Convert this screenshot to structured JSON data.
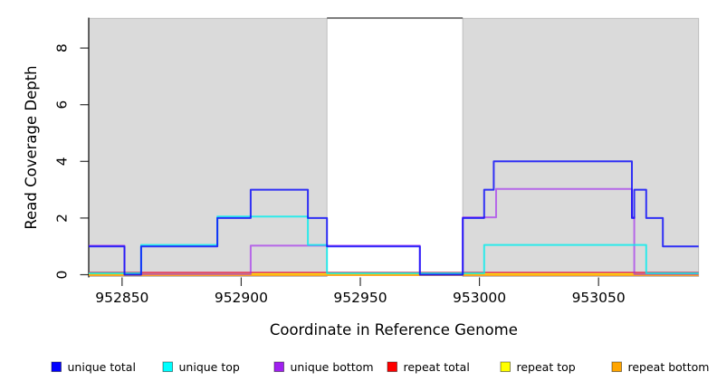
{
  "chart_data": {
    "type": "step-line",
    "title": "",
    "xlabel": "Coordinate in Reference Genome",
    "ylabel": "Read Coverage Depth",
    "xlim": [
      952836,
      953092
    ],
    "ylim": [
      0,
      9
    ],
    "x_ticks": [
      952850,
      952900,
      952950,
      953000,
      953050
    ],
    "y_ticks": [
      0,
      2,
      4,
      6,
      8
    ],
    "grid": false,
    "legend_position": "bottom",
    "background_regions": [
      {
        "name": "covered-region-left",
        "from": 952836,
        "to": 952936,
        "fill": "#dadada",
        "border": "#b9b9b9"
      },
      {
        "name": "covered-region-right",
        "from": 952993,
        "to": 953092,
        "fill": "#dadada",
        "border": "#b9b9b9"
      }
    ],
    "gap_region": {
      "from": 952936,
      "to": 952993,
      "fill": "#ffffff",
      "top_border_color": "#5f5f5f"
    },
    "series": [
      {
        "name": "unique total",
        "legend_fill": "#0000FF",
        "stroke": "rgba(10,10,250,0.82)",
        "dy": 0,
        "steps": [
          [
            952836,
            1
          ],
          [
            952851,
            0
          ],
          [
            952858,
            1
          ],
          [
            952890,
            2
          ],
          [
            952904,
            3
          ],
          [
            952928,
            2
          ],
          [
            952936,
            1
          ],
          [
            952975,
            0
          ],
          [
            952993,
            2
          ],
          [
            953002,
            3
          ],
          [
            953006,
            4
          ],
          [
            953064,
            2
          ],
          [
            953065,
            3
          ],
          [
            953070,
            2
          ],
          [
            953077,
            1
          ]
        ]
      },
      {
        "name": "unique top",
        "legend_fill": "#00FFFF",
        "stroke": "rgba(0,238,238,0.8)",
        "dy": -1.6,
        "steps": [
          [
            952836,
            0
          ],
          [
            952858,
            1
          ],
          [
            952890,
            2
          ],
          [
            952928,
            1
          ],
          [
            952936,
            0
          ],
          [
            953002,
            1
          ],
          [
            953070,
            0
          ]
        ]
      },
      {
        "name": "unique bottom",
        "legend_fill": "#A020F0",
        "stroke": "rgba(160,32,240,0.62)",
        "dy": -0.8,
        "steps": [
          [
            952836,
            1
          ],
          [
            952851,
            0
          ],
          [
            952904,
            1
          ],
          [
            952975,
            0
          ],
          [
            952993,
            2
          ],
          [
            953007,
            3
          ],
          [
            953064,
            2
          ],
          [
            953065,
            0
          ]
        ]
      },
      {
        "name": "repeat total",
        "legend_fill": "#FF0000",
        "stroke": "rgba(230,25,70,0.72)",
        "dy": -2.4,
        "steps": [
          [
            952836,
            0
          ]
        ]
      },
      {
        "name": "repeat top",
        "legend_fill": "#FFFF00",
        "stroke": "rgba(255,255,0,0.9)",
        "dy": -1.2,
        "steps": [
          [
            952836,
            0
          ]
        ]
      },
      {
        "name": "repeat bottom",
        "legend_fill": "#FFA500",
        "stroke": "rgba(255,150,10,0.95)",
        "dy": 0.4,
        "steps": [
          [
            952836,
            0
          ]
        ]
      }
    ]
  }
}
